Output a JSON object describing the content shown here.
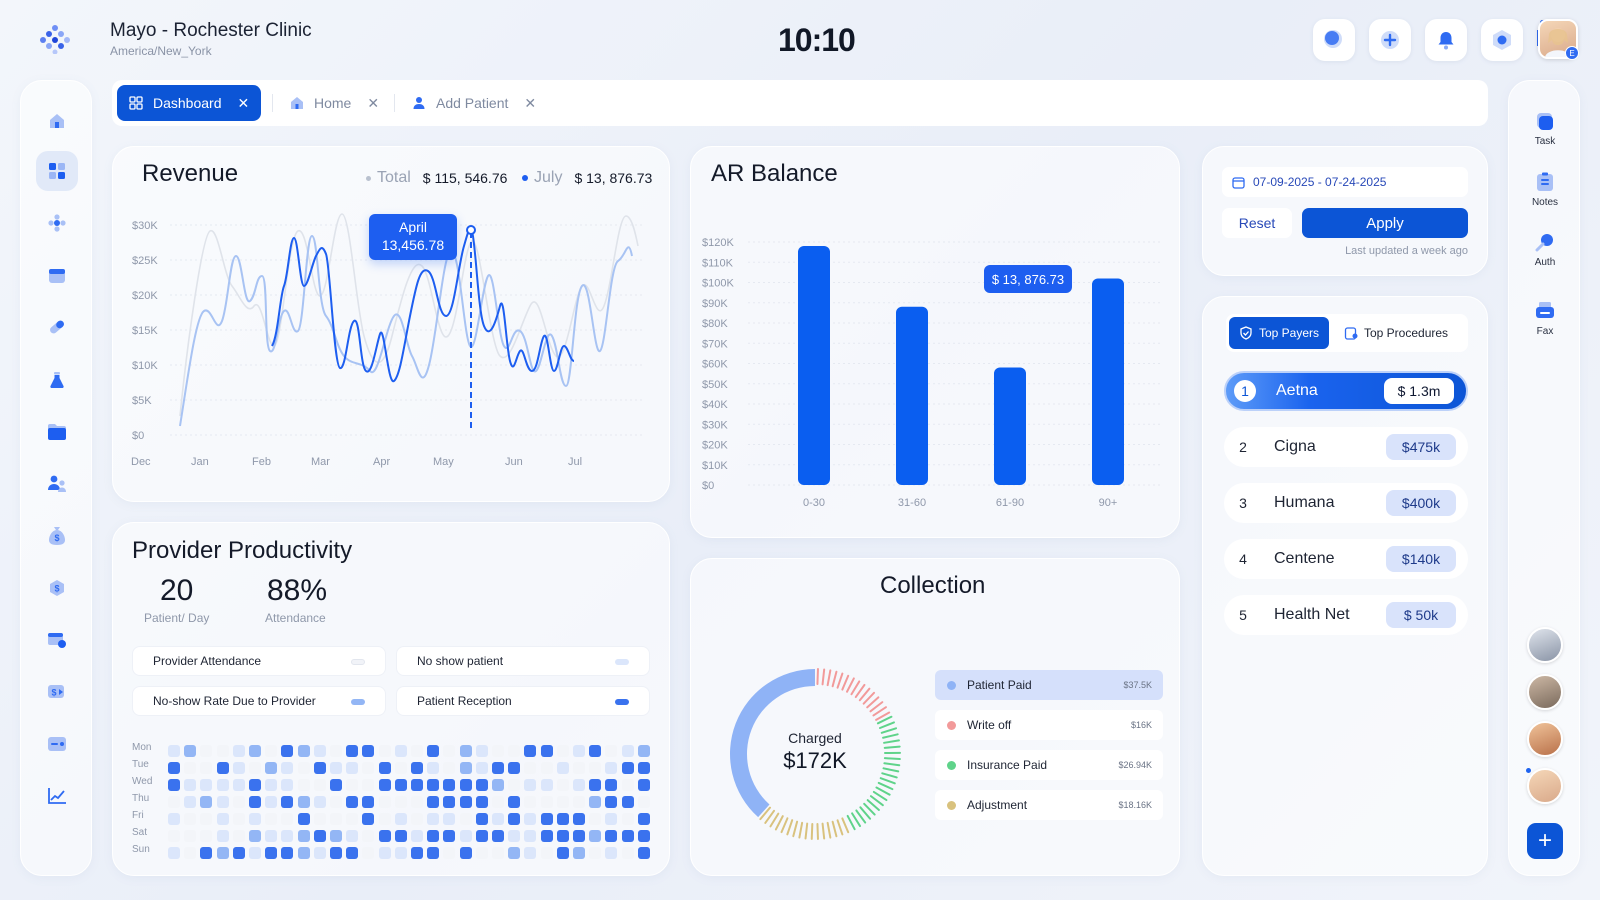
{
  "header": {
    "clinic_name": "Mayo - Rochester Clinic",
    "timezone": "America/New_York",
    "time": "10:10",
    "user_badge": "E"
  },
  "tabs": [
    {
      "label": "Dashboard",
      "active": true
    },
    {
      "label": "Home",
      "active": false
    },
    {
      "label": "Add Patient",
      "active": false
    }
  ],
  "right_sidebar": {
    "items": [
      {
        "label": "Task",
        "icon": "task-icon"
      },
      {
        "label": "Notes",
        "icon": "notes-icon"
      },
      {
        "label": "Auth",
        "icon": "key-icon"
      },
      {
        "label": "Fax",
        "icon": "fax-icon"
      }
    ],
    "add_label": "+"
  },
  "revenue": {
    "title": "Revenue",
    "legend_total_label": "Total",
    "legend_total_value": "$ 115, 546.76",
    "legend_month_label": "July",
    "legend_month_value": "$ 13, 876.73",
    "tooltip_month": "April",
    "tooltip_value": "13,456.78",
    "y_ticks": [
      "$30K",
      "$25K",
      "$20K",
      "$15K",
      "$10K",
      "$5K",
      "$0"
    ],
    "x_ticks": [
      "Dec",
      "Jan",
      "Feb",
      "Mar",
      "Apr",
      "May",
      "Jun",
      "Jul"
    ]
  },
  "ar_balance": {
    "title": "AR Balance",
    "tooltip": "$ 13, 876.73",
    "y_ticks": [
      "$120K",
      "$110K",
      "$100K",
      "$90K",
      "$80K",
      "$70K",
      "$60K",
      "$50K",
      "$40K",
      "$30K",
      "$20K",
      "$10K",
      "$0"
    ]
  },
  "chart_data": {
    "type": "bar",
    "title": "AR Balance",
    "categories": [
      "0-30",
      "31-60",
      "61-90",
      "90+"
    ],
    "values": [
      118000,
      88000,
      58000,
      102000
    ],
    "ylim": [
      0,
      120000
    ],
    "xlabel": "",
    "ylabel": "",
    "color": "#0a5ef0",
    "grid": true
  },
  "productivity": {
    "title": "Provider Productivity",
    "patients_value": "20",
    "patients_label": "Patient/ Day",
    "attendance_value": "88%",
    "attendance_label": "Attendance",
    "legend": [
      {
        "label": "Provider Attendance",
        "color": "#f1f3f8"
      },
      {
        "label": "No show patient",
        "color": "#dbe6fb"
      },
      {
        "label": "No-show Rate Due to Provider",
        "color": "#93b6f5"
      },
      {
        "label": "Patient Reception",
        "color": "#3a72ee"
      }
    ],
    "days": [
      "Mon",
      "Tue",
      "Wed",
      "Thu",
      "Fri",
      "Sat",
      "Sun"
    ]
  },
  "collection": {
    "title": "Collection",
    "center_label": "Charged",
    "center_value": "$172K",
    "items": [
      {
        "label": "Patient Paid",
        "value": "$37.5K",
        "color": "#8fb3f6"
      },
      {
        "label": "Write off",
        "value": "$16K",
        "color": "#f29a9a"
      },
      {
        "label": "Insurance Paid",
        "value": "$26.94K",
        "color": "#5fd38a"
      },
      {
        "label": "Adjustment",
        "value": "$18.16K",
        "color": "#d9c27e"
      }
    ]
  },
  "filters": {
    "date_range": "07-09-2025 - 07-24-2025",
    "reset_label": "Reset",
    "apply_label": "Apply",
    "last_updated": "Last updated a week ago"
  },
  "payers": {
    "tab_top_payers": "Top Payers",
    "tab_top_procedures": "Top Procedures",
    "list": [
      {
        "rank": "1",
        "name": "Aetna",
        "amount": "$ 1.3m"
      },
      {
        "rank": "2",
        "name": "Cigna",
        "amount": "$475k"
      },
      {
        "rank": "3",
        "name": "Humana",
        "amount": "$400k"
      },
      {
        "rank": "4",
        "name": "Centene",
        "amount": "$140k"
      },
      {
        "rank": "5",
        "name": "Health Net",
        "amount": "$ 50k"
      }
    ]
  }
}
